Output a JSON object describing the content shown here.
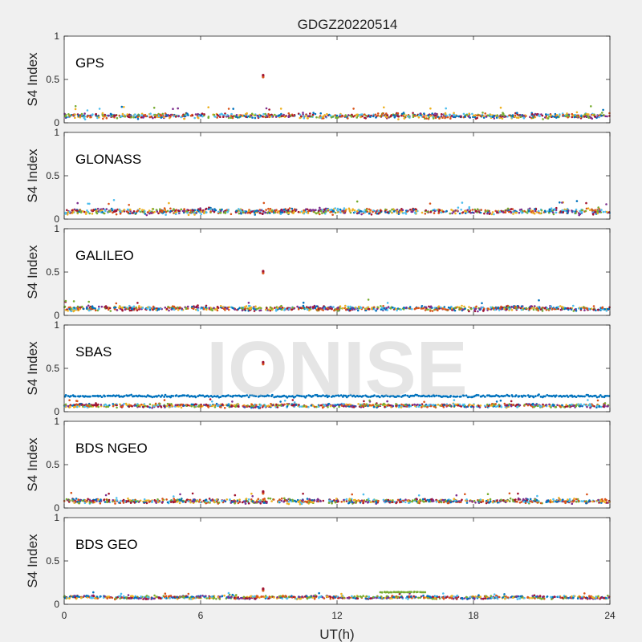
{
  "title": "GDGZ20220514",
  "watermark": "IONISE",
  "chart_data": {
    "type": "scatter",
    "title": "GDGZ20220514",
    "xlabel": "UT(h)",
    "xlim": [
      0,
      24
    ],
    "xticks": [
      0,
      6,
      12,
      18,
      24
    ],
    "ylim": [
      0,
      1
    ],
    "yticks": [
      0,
      0.5,
      1
    ],
    "grid": false,
    "colors": [
      "#0072BD",
      "#D95319",
      "#EDB120",
      "#7E2F8E",
      "#77AC30",
      "#4DBEEE",
      "#A2142F"
    ],
    "panels": [
      {
        "name": "GPS",
        "ylabel": "S4 Index",
        "baseline": 0.08,
        "spread": 0.035,
        "outlier": {
          "x": 8.75,
          "y": 0.54
        },
        "features": []
      },
      {
        "name": "GLONASS",
        "ylabel": "S4 Index",
        "baseline": 0.09,
        "spread": 0.04,
        "outlier": null,
        "features": []
      },
      {
        "name": "GALILEO",
        "ylabel": "S4 Index",
        "baseline": 0.08,
        "spread": 0.03,
        "outlier": {
          "x": 8.75,
          "y": 0.5
        },
        "features": []
      },
      {
        "name": "SBAS",
        "ylabel": "S4 Index",
        "baseline": 0.07,
        "spread": 0.02,
        "outlier": {
          "x": 8.75,
          "y": 0.56
        },
        "features": [
          {
            "color": 0,
            "y": 0.18,
            "spread": 0.02,
            "from": 0,
            "to": 24
          }
        ]
      },
      {
        "name": "BDS NGEO",
        "ylabel": "S4 Index",
        "baseline": 0.08,
        "spread": 0.03,
        "outlier": {
          "x": 8.75,
          "y": 0.18
        },
        "features": []
      },
      {
        "name": "BDS GEO",
        "ylabel": "S4 Index",
        "baseline": 0.08,
        "spread": 0.015,
        "outlier": {
          "x": 8.75,
          "y": 0.17
        },
        "features": [
          {
            "color": 4,
            "y": 0.14,
            "spread": 0.006,
            "from": 13.9,
            "to": 15.9
          }
        ]
      }
    ]
  }
}
